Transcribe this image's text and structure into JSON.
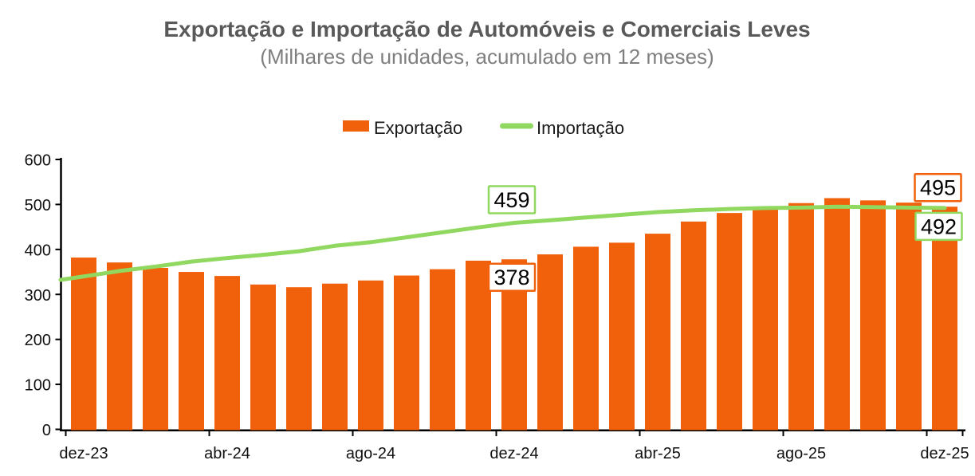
{
  "title": "Exportação e Importação de Automóveis e Comerciais Leves",
  "subtitle": "(Milhares de unidades, acumulado em 12 meses)",
  "legend": {
    "items": [
      {
        "label": "Exportação",
        "series": "exportacao",
        "swatch": "bar"
      },
      {
        "label": "Importação",
        "series": "importacao",
        "swatch": "line"
      }
    ],
    "position": "top-center"
  },
  "colors": {
    "exportacao": "#F1600A",
    "importacao": "#90D860",
    "title": "#595959",
    "subtitle": "#7F7F7F",
    "axis_line": "#000000",
    "axis_text": "#111111",
    "annotation_bg": "#FFFFFF",
    "annotation_text": "#000000"
  },
  "chart_data": {
    "type": "bar",
    "title": "Exportação e Importação de Automóveis e Comerciais Leves",
    "subtitle": "(Milhares de unidades, acumulado em 12 meses)",
    "categories": [
      "dez-23",
      "jan-24",
      "fev-24",
      "mar-24",
      "abr-24",
      "mai-24",
      "jun-24",
      "jul-24",
      "ago-24",
      "set-24",
      "out-24",
      "nov-24",
      "dez-24",
      "jan-25",
      "fev-25",
      "mar-25",
      "abr-25",
      "mai-25",
      "jun-25",
      "jul-25",
      "ago-25",
      "set-25",
      "out-25",
      "nov-25",
      "dez-25"
    ],
    "series": [
      {
        "name": "Exportação",
        "type": "bar",
        "color": "#F1600A",
        "values": [
          382,
          371,
          359,
          350,
          341,
          322,
          316,
          324,
          331,
          342,
          356,
          375,
          378,
          389,
          406,
          415,
          435,
          462,
          481,
          490,
          503,
          514,
          509,
          504,
          495
        ]
      },
      {
        "name": "Importação",
        "type": "line",
        "color": "#90D860",
        "values": [
          340,
          352,
          362,
          373,
          381,
          388,
          396,
          408,
          416,
          427,
          438,
          449,
          459,
          465,
          471,
          477,
          483,
          487,
          490,
          492,
          493,
          495,
          494,
          493,
          492
        ]
      }
    ],
    "xlabel": "",
    "ylabel": "",
    "ylim": [
      0,
      600
    ],
    "y_ticks": [
      0,
      100,
      200,
      300,
      400,
      500,
      600
    ],
    "x_tick_labels_shown": [
      "dez-23",
      "abr-24",
      "ago-24",
      "dez-24",
      "abr-25",
      "ago-25",
      "dez-25"
    ],
    "grid": false,
    "legend_position": "top-center",
    "annotations": [
      {
        "series": "Importação",
        "category": "dez-24",
        "value": 459
      },
      {
        "series": "Exportação",
        "category": "dez-24",
        "value": 378
      },
      {
        "series": "Exportação",
        "category": "dez-25",
        "value": 495
      },
      {
        "series": "Importação",
        "category": "dez-25",
        "value": 492
      }
    ]
  }
}
